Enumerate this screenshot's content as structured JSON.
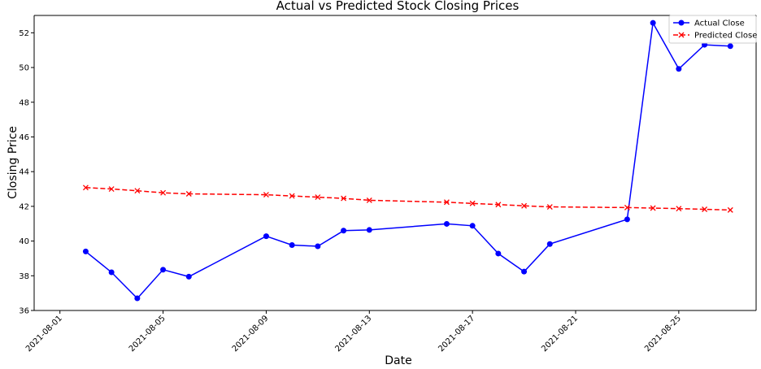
{
  "chart_data": {
    "type": "line",
    "title": "Actual vs Predicted Stock Closing Prices",
    "xlabel": "Date",
    "ylabel": "Closing Price",
    "ylim": [
      36,
      53
    ],
    "xlim": [
      "2021-07-31",
      "2021-08-28"
    ],
    "grid": false,
    "legend_position": "top-right",
    "x_ticks": [
      "2021-08-01",
      "2021-08-05",
      "2021-08-09",
      "2021-08-13",
      "2021-08-17",
      "2021-08-21",
      "2021-08-25"
    ],
    "y_ticks": [
      36,
      38,
      40,
      42,
      44,
      46,
      48,
      50,
      52
    ],
    "x": [
      "2021-08-02",
      "2021-08-03",
      "2021-08-04",
      "2021-08-05",
      "2021-08-06",
      "2021-08-09",
      "2021-08-10",
      "2021-08-11",
      "2021-08-12",
      "2021-08-13",
      "2021-08-16",
      "2021-08-17",
      "2021-08-18",
      "2021-08-19",
      "2021-08-20",
      "2021-08-23",
      "2021-08-24",
      "2021-08-25",
      "2021-08-26",
      "2021-08-27"
    ],
    "series": [
      {
        "name": "Actual Close",
        "color": "#0000ff",
        "marker": "circle",
        "line_style": "solid",
        "values": [
          39.4,
          38.2,
          36.7,
          38.35,
          37.95,
          40.28,
          39.77,
          39.7,
          40.6,
          40.64,
          40.99,
          40.88,
          39.28,
          38.24,
          39.83,
          41.25,
          52.57,
          49.92,
          51.31,
          51.23
        ]
      },
      {
        "name": "Predicted Close",
        "color": "#ff0000",
        "marker": "x",
        "line_style": "dashed",
        "values": [
          43.08,
          43.0,
          42.9,
          42.78,
          42.72,
          42.67,
          42.6,
          42.53,
          42.46,
          42.35,
          42.24,
          42.17,
          42.1,
          42.03,
          41.97,
          41.93,
          41.9,
          41.87,
          41.83,
          41.79
        ]
      }
    ]
  }
}
